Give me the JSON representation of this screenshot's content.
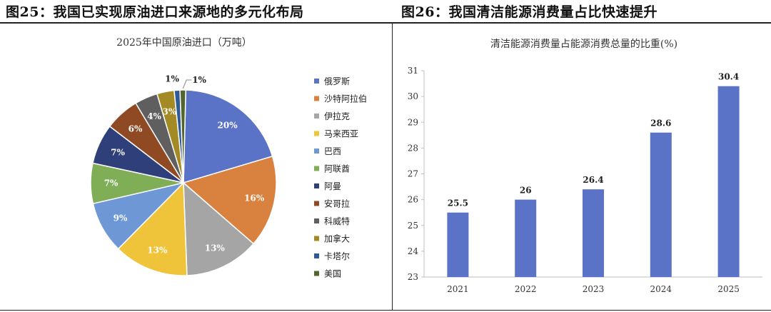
{
  "fig1": {
    "caption": "图25：我国已实现原油进口来源地的多元化布局"
  },
  "fig2": {
    "caption": "图26：我国清洁能源消费量占比快速提升"
  },
  "chart_data": [
    {
      "type": "pie",
      "title": "2025年中国原油进口（万吨）",
      "legend_position": "right",
      "categories": [
        "俄罗斯",
        "沙特阿拉伯",
        "伊拉克",
        "马来西亚",
        "巴西",
        "阿联酋",
        "阿曼",
        "安哥拉",
        "科威特",
        "加拿大",
        "卡塔尔",
        "美国"
      ],
      "values": [
        20,
        16,
        13,
        13,
        9,
        7,
        7,
        6,
        4,
        3,
        1,
        1
      ],
      "labels": [
        "20%",
        "16%",
        "13%",
        "13%",
        "9%",
        "7%",
        "7%",
        "6%",
        "4%",
        "3%",
        "1%",
        "1%"
      ],
      "colors": [
        "#5b73c7",
        "#d9813f",
        "#a5a5a5",
        "#f0c43a",
        "#6e97d6",
        "#7fae57",
        "#2f3f7a",
        "#8f4a23",
        "#5f5f5f",
        "#a48a25",
        "#2f5a94",
        "#53652e"
      ]
    },
    {
      "type": "bar",
      "title": "清洁能源消费量占能源消费总量的比重(%)",
      "categories": [
        "2021",
        "2022",
        "2023",
        "2024",
        "2025"
      ],
      "values": [
        25.5,
        26,
        26.4,
        28.6,
        30.4
      ],
      "labels": [
        "25.5",
        "26",
        "26.4",
        "28.6",
        "30.4"
      ],
      "ylim": [
        23,
        31
      ],
      "yticks": [
        "23",
        "24",
        "25",
        "26",
        "27",
        "28",
        "29",
        "30",
        "31"
      ],
      "color": "#5b73c7",
      "grid": false
    }
  ]
}
